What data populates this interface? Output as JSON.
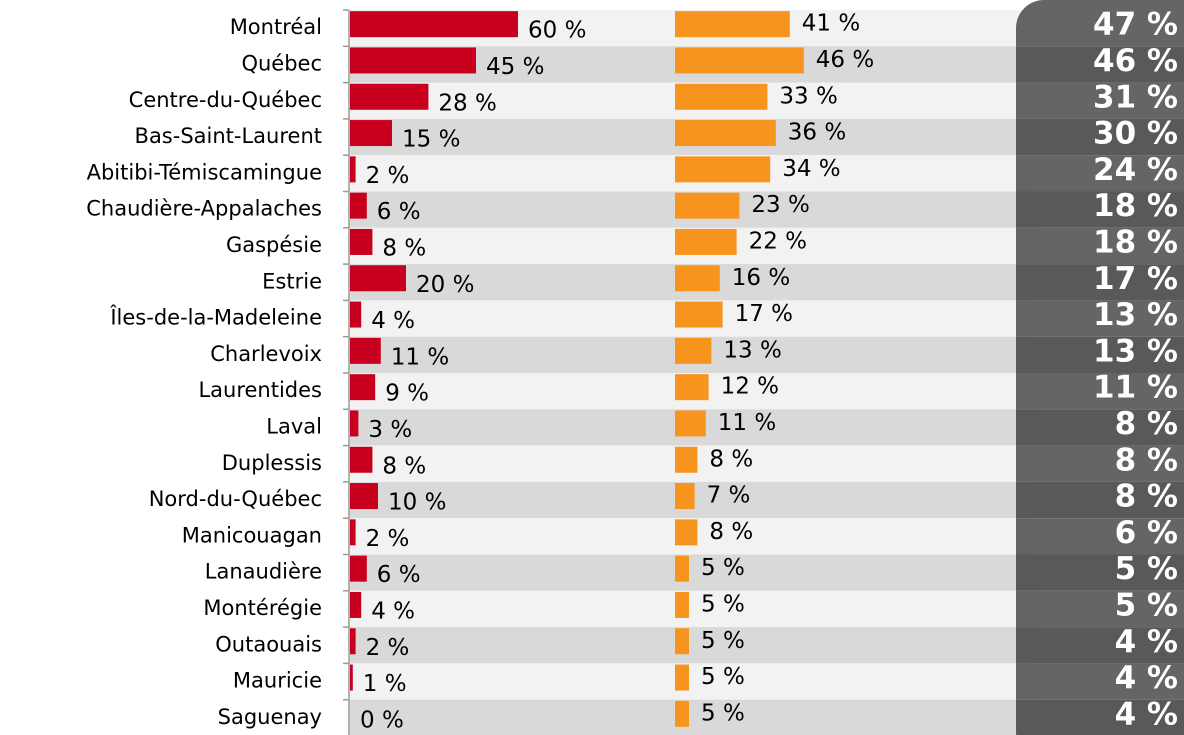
{
  "chart_data": {
    "type": "bar",
    "orientation": "horizontal",
    "categories": [
      "Montréal",
      "Québec",
      "Centre-du-Québec",
      "Bas-Saint-Laurent",
      "Abitibi-Témiscamingue",
      "Chaudière-Appalaches",
      "Gaspésie",
      "Estrie",
      "Îles-de-la-Madeleine",
      "Charlevoix",
      "Laurentides",
      "Laval",
      "Duplessis",
      "Nord-du-Québec",
      "Manicouagan",
      "Lanaudière",
      "Montérégie",
      "Outaouais",
      "Mauricie",
      "Saguenay"
    ],
    "series": [
      {
        "color": "#c8001e",
        "values": [
          60,
          45,
          28,
          15,
          2,
          6,
          8,
          20,
          4,
          11,
          9,
          3,
          8,
          10,
          2,
          6,
          4,
          2,
          1,
          0
        ],
        "value_labels": [
          "60 %",
          "45 %",
          "28 %",
          "15 %",
          "2 %",
          "6 %",
          "8 %",
          "20 %",
          "4 %",
          "11 %",
          "9 %",
          "3 %",
          "8 %",
          "10 %",
          "2 %",
          "6 %",
          "4 %",
          "2 %",
          "1 %",
          "0 %"
        ]
      },
      {
        "color": "#f7941d",
        "values": [
          41,
          46,
          33,
          36,
          34,
          23,
          22,
          16,
          17,
          13,
          12,
          11,
          8,
          7,
          8,
          5,
          5,
          5,
          5,
          5
        ],
        "value_labels": [
          "41 %",
          "46 %",
          "33 %",
          "36 %",
          "34 %",
          "23 %",
          "22 %",
          "16 %",
          "17 %",
          "13 %",
          "12 %",
          "11 %",
          "8 %",
          "7 %",
          "8 %",
          "5 %",
          "5 %",
          "5 %",
          "5 %",
          "5 %"
        ]
      },
      {
        "color": "#595959",
        "values": [
          47,
          46,
          31,
          30,
          24,
          18,
          18,
          17,
          13,
          13,
          11,
          8,
          8,
          8,
          6,
          5,
          5,
          4,
          4,
          4
        ],
        "value_labels": [
          "47 %",
          "46 %",
          "31 %",
          "30 %",
          "24 %",
          "18 %",
          "18 %",
          "17 %",
          "13 %",
          "13 %",
          "11 %",
          "8 %",
          "8 %",
          "8 %",
          "6 %",
          "5 %",
          "5 %",
          "4 %",
          "4 %",
          "4 %"
        ]
      }
    ]
  }
}
